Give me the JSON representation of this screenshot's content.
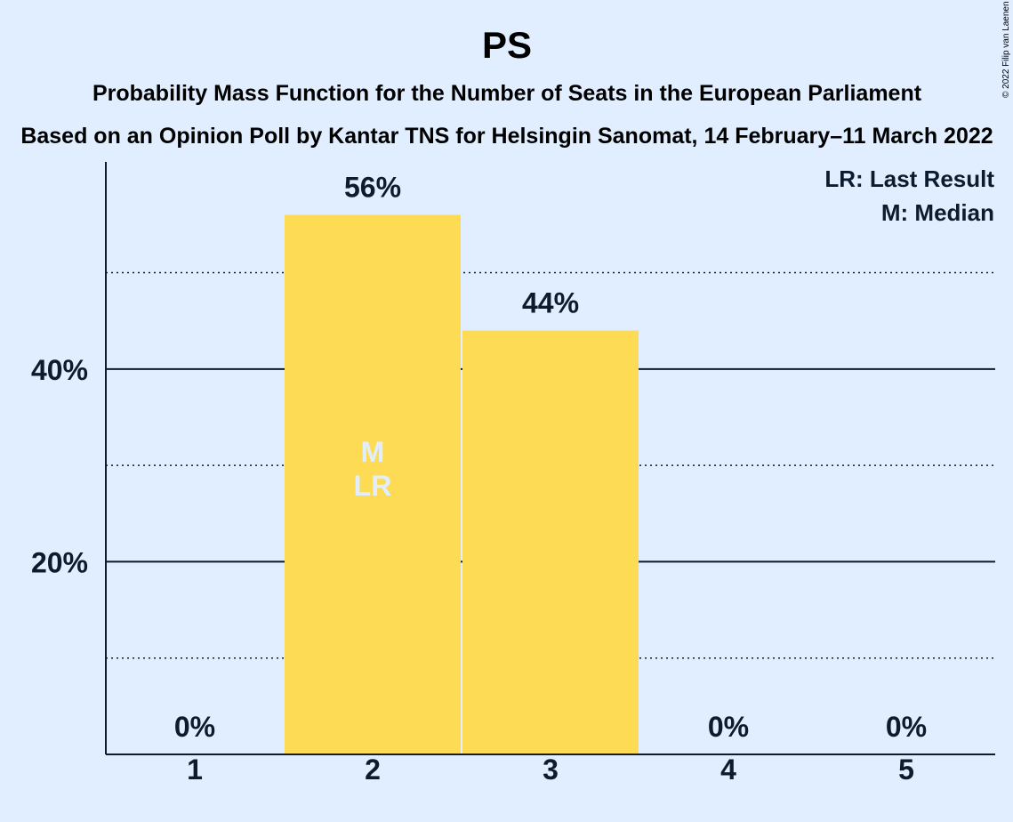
{
  "chart_data": {
    "type": "bar",
    "title": "PS",
    "subtitle": "Probability Mass Function for the Number of Seats in the European Parliament",
    "subtitle2": "Based on an Opinion Poll by Kantar TNS for Helsingin Sanomat, 14 February–11 March 2022",
    "categories": [
      "1",
      "2",
      "3",
      "4",
      "5"
    ],
    "values": [
      0,
      56,
      44,
      0,
      0
    ],
    "value_labels": [
      "0%",
      "56%",
      "44%",
      "0%",
      "0%"
    ],
    "ylim": [
      0,
      60
    ],
    "y_ticks": [
      {
        "value": 20,
        "label": "20%"
      },
      {
        "value": 40,
        "label": "40%"
      }
    ],
    "minor_gridlines": [
      10,
      30,
      50
    ],
    "grid": true,
    "bar_color": "#fddb55",
    "markers": {
      "category": "2",
      "lines": [
        "M",
        "LR"
      ]
    },
    "legend": [
      "LR: Last Result",
      "M: Median"
    ],
    "legend_position": "top-right"
  },
  "copyright": "© 2022 Filip van Laenen",
  "colors": {
    "background": "#e0eeff",
    "text": "#0d1b2e",
    "bar": "#fddb55",
    "marker_text": "#e0eeff"
  }
}
